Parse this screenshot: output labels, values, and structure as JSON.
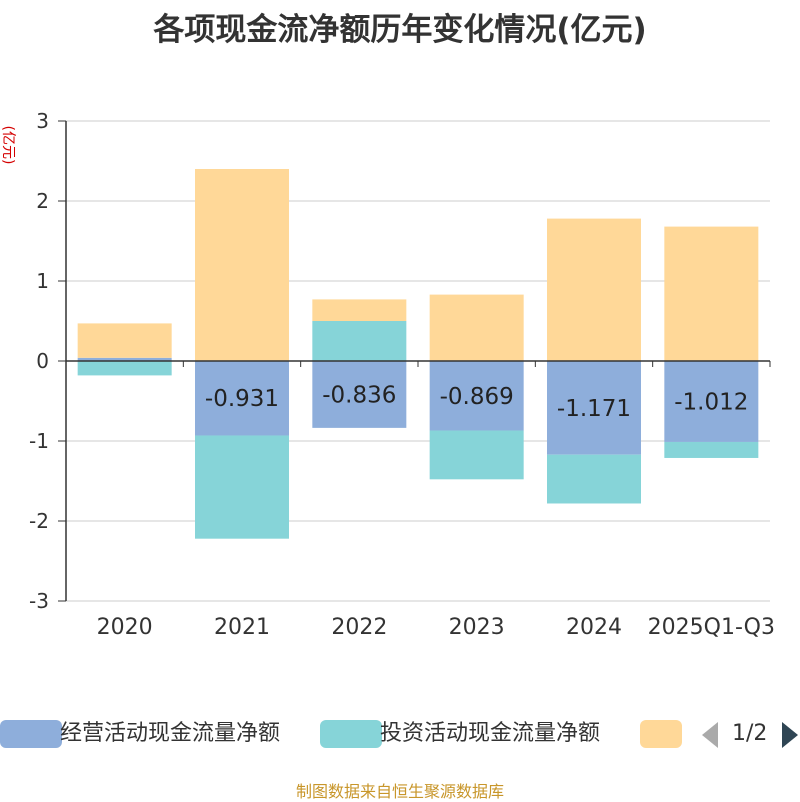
{
  "chart_data": {
    "type": "bar",
    "stacked": true,
    "title": "各项现金流净额历年变化情况(亿元)",
    "ylabel": "(亿元)",
    "xlabel": "",
    "ylim": [
      -3,
      3
    ],
    "yticks": [
      3,
      2,
      1,
      0,
      -1,
      -2,
      -3
    ],
    "categories": [
      "2020",
      "2021",
      "2022",
      "2023",
      "2024",
      "2025Q1-Q3"
    ],
    "series": [
      {
        "name": "经营活动现金流量净额",
        "color": "#8eaedb",
        "values": [
          0.04,
          -0.931,
          -0.836,
          -0.869,
          -1.171,
          -1.012
        ],
        "labels": [
          "",
          "-0.931",
          "-0.836",
          "-0.869",
          "-1.171",
          "-1.012"
        ]
      },
      {
        "name": "投资活动现金流量净额",
        "color": "#86d4d8",
        "values": [
          -0.18,
          -1.29,
          0.5,
          -0.61,
          -0.61,
          -0.2
        ]
      },
      {
        "name": "",
        "color": "#ffd898",
        "values": [
          0.43,
          2.4,
          0.27,
          0.83,
          1.78,
          1.68
        ]
      }
    ],
    "legend": [
      "经营活动现金流量净额",
      "投资活动现金流量净额",
      ""
    ],
    "legend_position": "bottom"
  },
  "pager": {
    "text": "1/2"
  },
  "source": "制图数据来自恒生聚源数据库"
}
